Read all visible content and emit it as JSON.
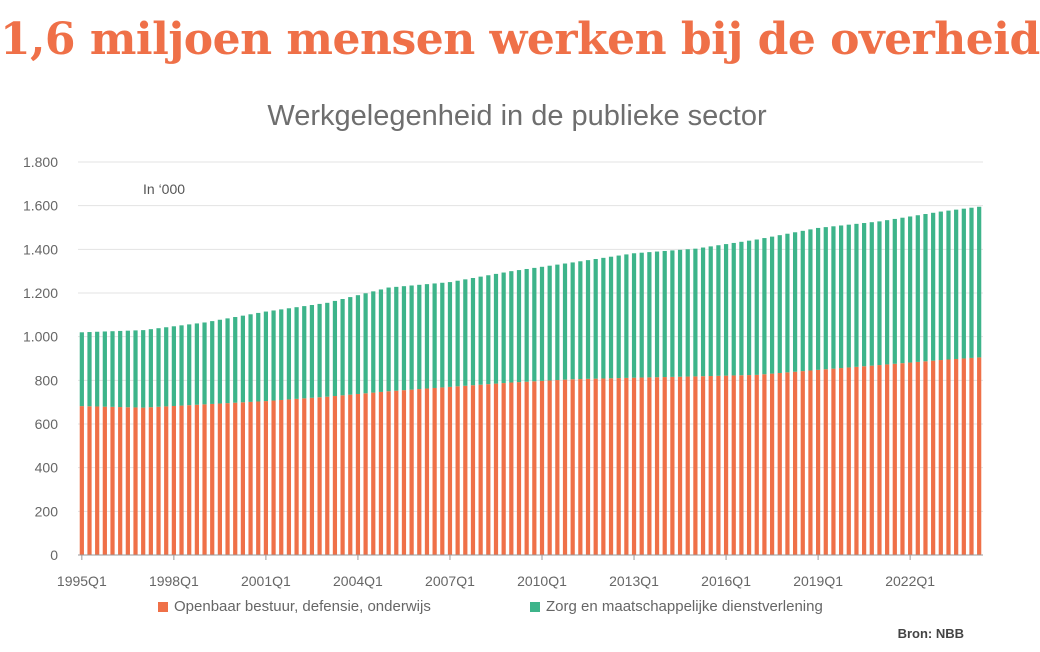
{
  "headline": "1,6 miljoen mensen werken bij de overheid",
  "source": "Bron: NBB",
  "colors": {
    "headline": "#EF7048",
    "public_admin": "#EF7048",
    "care": "#3DB48A",
    "grid": "#e3e3e3"
  },
  "chart_data": {
    "type": "bar",
    "stacked": true,
    "title": "Werkgelegenheid in de publieke sector",
    "unit_label": "In ‘000",
    "xlabel": "",
    "ylabel": "",
    "ylim": [
      0,
      1800
    ],
    "y_ticks": [
      0,
      200,
      400,
      600,
      800,
      1000,
      1200,
      1400,
      1600,
      1800
    ],
    "y_tick_labels": [
      "0",
      "200",
      "400",
      "600",
      "800",
      "1.000",
      "1.200",
      "1.400",
      "1.600",
      "1.800"
    ],
    "x_start_quarter": "1995Q1",
    "x_tick_labels": [
      "1995Q1",
      "1998Q1",
      "2001Q1",
      "2004Q1",
      "2007Q1",
      "2010Q1",
      "2013Q1",
      "2016Q1",
      "2019Q1",
      "2022Q1"
    ],
    "grid": true,
    "legend_position": "bottom",
    "series": [
      {
        "name": "Openbaar bestuur, defensie, onderwijs",
        "keypoints": [
          [
            "1995Q1",
            682
          ],
          [
            "1997Q1",
            675
          ],
          [
            "1999Q1",
            690
          ],
          [
            "2001Q1",
            705
          ],
          [
            "2003Q1",
            725
          ],
          [
            "2005Q1",
            750
          ],
          [
            "2007Q1",
            770
          ],
          [
            "2009Q1",
            790
          ],
          [
            "2011Q1",
            805
          ],
          [
            "2013Q1",
            812
          ],
          [
            "2015Q1",
            818
          ],
          [
            "2017Q1",
            825
          ],
          [
            "2019Q1",
            848
          ],
          [
            "2021Q1",
            870
          ],
          [
            "2023Q1",
            893
          ],
          [
            "2024Q2",
            905
          ]
        ]
      },
      {
        "name": "Zorg en maatschappelijke dienstverlening",
        "keypoints": [
          [
            "1995Q1",
            338
          ],
          [
            "1997Q1",
            355
          ],
          [
            "1999Q1",
            375
          ],
          [
            "2001Q1",
            410
          ],
          [
            "2003Q1",
            430
          ],
          [
            "2005Q1",
            475
          ],
          [
            "2007Q1",
            480
          ],
          [
            "2009Q1",
            510
          ],
          [
            "2011Q1",
            535
          ],
          [
            "2013Q1",
            570
          ],
          [
            "2015Q1",
            585
          ],
          [
            "2017Q1",
            620
          ],
          [
            "2019Q1",
            650
          ],
          [
            "2021Q1",
            658
          ],
          [
            "2023Q1",
            680
          ],
          [
            "2024Q2",
            690
          ]
        ]
      }
    ]
  }
}
